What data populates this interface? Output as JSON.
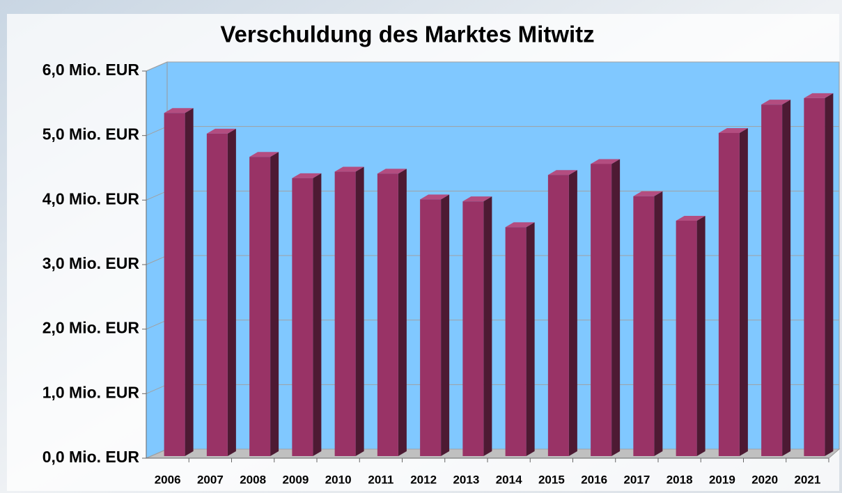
{
  "chart_data": {
    "type": "bar3d",
    "title": "Verschuldung des Marktes Mitwitz",
    "categories": [
      "2006",
      "2007",
      "2008",
      "2009",
      "2010",
      "2011",
      "2012",
      "2013",
      "2014",
      "2015",
      "2016",
      "2017",
      "2018",
      "2019",
      "2020",
      "2021"
    ],
    "values": [
      5.35,
      5.03,
      4.67,
      4.34,
      4.44,
      4.41,
      4.01,
      3.98,
      3.58,
      4.39,
      4.56,
      4.06,
      3.68,
      5.04,
      5.48,
      5.58
    ],
    "color": "#993366",
    "ylim": [
      0,
      6
    ],
    "yticks": [
      {
        "value": 0,
        "label": "0,0 Mio. EUR"
      },
      {
        "value": 1,
        "label": "1,0 Mio. EUR"
      },
      {
        "value": 2,
        "label": "2,0 Mio. EUR"
      },
      {
        "value": 3,
        "label": "3,0 Mio. EUR"
      },
      {
        "value": 4,
        "label": "4,0 Mio. EUR"
      },
      {
        "value": 5,
        "label": "5,0 Mio. EUR"
      },
      {
        "value": 6,
        "label": "6,0 Mio. EUR"
      }
    ],
    "grid": true
  }
}
